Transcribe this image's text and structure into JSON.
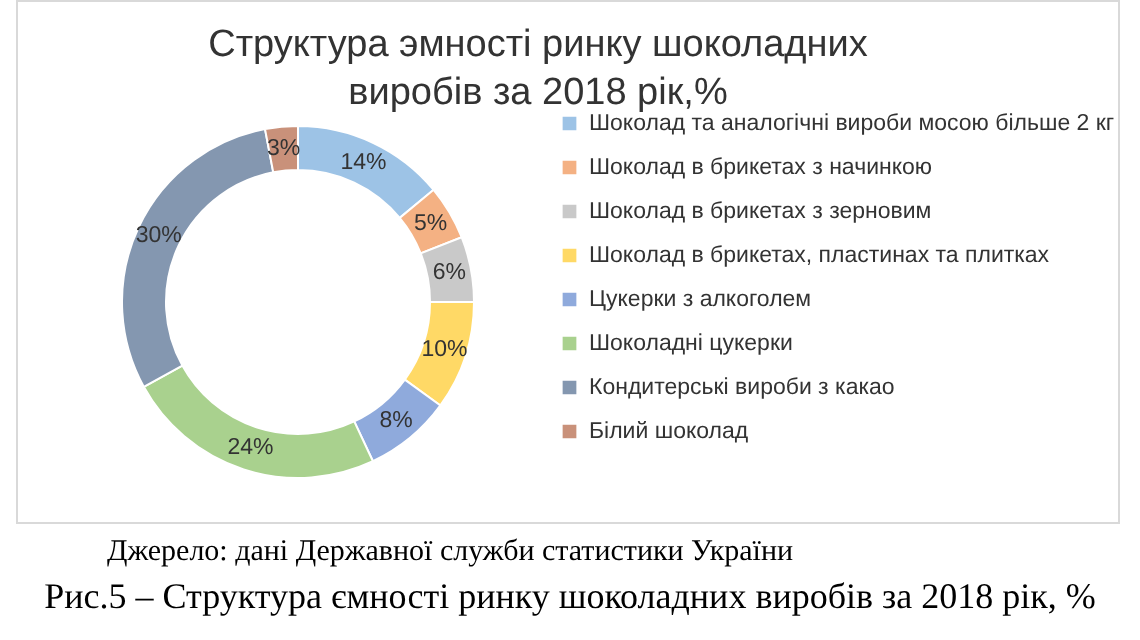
{
  "chart_data": {
    "type": "donut",
    "title": "Структура эмності ринку шоколадних виробів за 2018 рік,%",
    "categories": [
      "Шоколад та аналогічні вироби мосою більше 2 кг",
      "Шоколад в брикетах з начинкою",
      "Шоколад в брикетах з зерновим",
      "Шоколад в брикетах, пластинах та плитках",
      "Цукерки з алкоголем",
      "Шоколадні цукерки",
      "Кондитерські вироби з какао",
      "Білий шоколад"
    ],
    "values": [
      14,
      5,
      6,
      10,
      8,
      24,
      30,
      3
    ],
    "value_labels": [
      "14%",
      "5%",
      "6%",
      "10%",
      "8%",
      "24%",
      "30%",
      "3%"
    ],
    "colors": [
      "#9dc3e6",
      "#f4b183",
      "#c9c9c9",
      "#ffd966",
      "#8faadc",
      "#a9d18e",
      "#8497b0",
      "#c9917a"
    ],
    "legend": "right",
    "annotations": [
      "Джерело: дані Державної служби статистики України",
      "Рис.5 – Структура ємності ринку шоколадних виробів за 2018 рік, %"
    ]
  }
}
